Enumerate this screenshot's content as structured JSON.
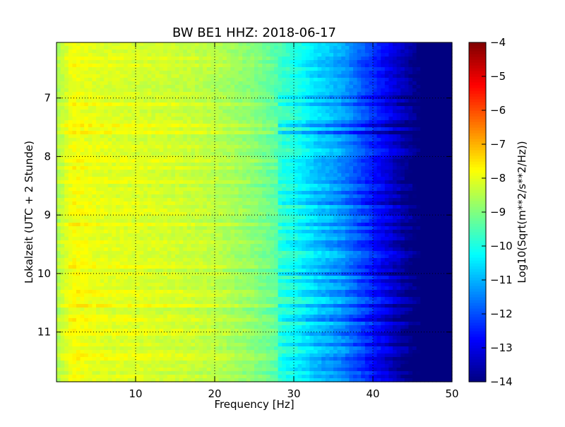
{
  "chart_data": {
    "type": "heatmap",
    "title": "BW BE1 HHZ: 2018-06-17",
    "xlabel": "Frequency [Hz]",
    "ylabel": "Lokalzeit (UTC + 2 Stunde)",
    "xlim": [
      0,
      50
    ],
    "ylim": [
      11.85,
      6.05
    ],
    "y_inverted": true,
    "x_ticks": [
      10,
      20,
      30,
      40,
      50
    ],
    "x_tick_labels": [
      "10",
      "20",
      "30",
      "40",
      "50"
    ],
    "y_ticks": [
      7,
      8,
      9,
      10,
      11
    ],
    "y_tick_labels": [
      "7",
      "8",
      "9",
      "10",
      "11"
    ],
    "grid": true,
    "colormap": "jet",
    "colorbar": {
      "label": "Log10(Sqrt(m**2/s**2/Hz))",
      "range": [
        -14,
        -4
      ],
      "ticks": [
        -14,
        -13,
        -12,
        -11,
        -10,
        -9,
        -8,
        -7,
        -6,
        -5,
        -4
      ],
      "tick_labels": [
        "−14",
        "−13",
        "−12",
        "−11",
        "−10",
        "−9",
        "−8",
        "−7",
        "−6",
        "−5",
        "−4"
      ]
    },
    "frequency_profile_hz": [
      0,
      2,
      5,
      10,
      15,
      20,
      25,
      30,
      33,
      36,
      38,
      40,
      42,
      44,
      46,
      50
    ],
    "frequency_profile_level": [
      -8.7,
      -7.9,
      -8.1,
      -8.2,
      -8.3,
      -8.5,
      -9.0,
      -9.8,
      -10.5,
      -11.0,
      -11.6,
      -12.2,
      -12.8,
      -13.4,
      -14.0,
      -14.0
    ],
    "band_hours": [
      6.35,
      6.45,
      6.6,
      6.97,
      7.1,
      7.45,
      7.6,
      7.8,
      8.05,
      8.1,
      8.22,
      8.35,
      8.42,
      8.6,
      8.72,
      8.8,
      8.95,
      9.15,
      9.3,
      9.45,
      9.55,
      9.8,
      9.9,
      10.0,
      10.15,
      10.3,
      10.35,
      10.55,
      10.72,
      10.8,
      10.95,
      11.05,
      11.2,
      11.38,
      11.45,
      11.55,
      11.65,
      11.78
    ],
    "band_strength": [
      0.4,
      0.3,
      0.3,
      0.5,
      0.5,
      1.0,
      0.9,
      0.5,
      0.7,
      0.5,
      0.6,
      0.5,
      0.6,
      0.6,
      0.5,
      0.5,
      0.6,
      0.6,
      0.5,
      0.6,
      0.7,
      0.5,
      0.6,
      0.6,
      0.5,
      0.5,
      0.6,
      0.6,
      0.5,
      0.7,
      0.6,
      0.7,
      0.6,
      0.5,
      0.6,
      0.6,
      0.5,
      0.5
    ]
  }
}
